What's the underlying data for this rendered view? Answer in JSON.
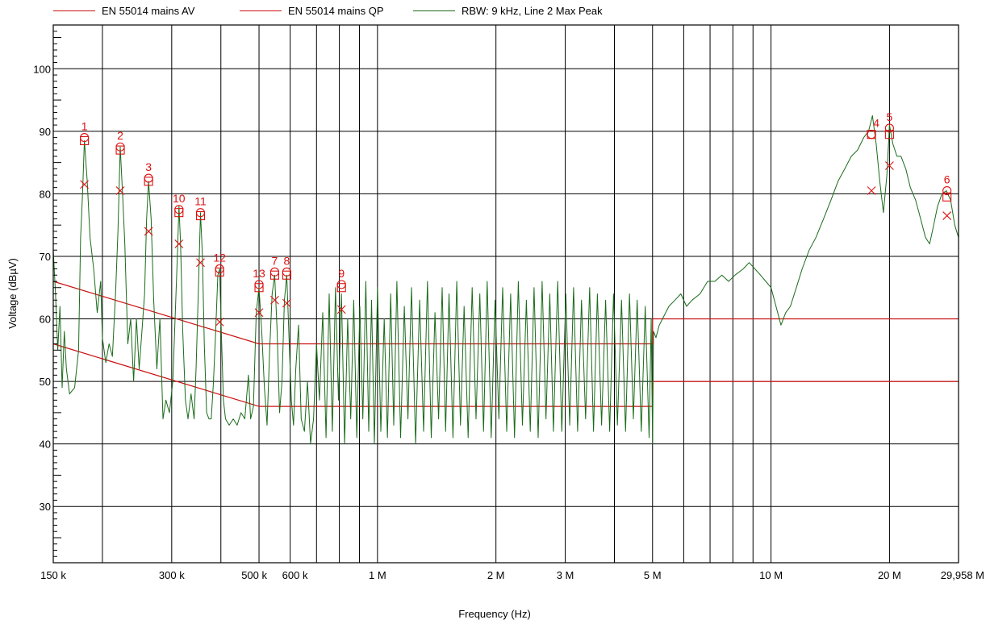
{
  "chart_data": {
    "type": "line",
    "xlabel": "Frequency (Hz)",
    "ylabel": "Voltage (dBµV)",
    "x_scale": "log",
    "xlim": [
      150000,
      29958000
    ],
    "ylim": [
      21,
      107
    ],
    "grid": true,
    "legend_position": "top",
    "x_ticks": [
      {
        "value": 150000,
        "label": "150 k"
      },
      {
        "value": 300000,
        "label": "300 k"
      },
      {
        "value": 500000,
        "label": "500 k"
      },
      {
        "value": 600000,
        "label": "600 k"
      },
      {
        "value": 1000000,
        "label": "1 M"
      },
      {
        "value": 2000000,
        "label": "2 M"
      },
      {
        "value": 3000000,
        "label": "3 M"
      },
      {
        "value": 5000000,
        "label": "5 M"
      },
      {
        "value": 10000000,
        "label": "10 M"
      },
      {
        "value": 20000000,
        "label": "20 M"
      },
      {
        "value": 29958000,
        "label": "29,958 M"
      }
    ],
    "x_gridlines": [
      150000,
      200000,
      300000,
      400000,
      500000,
      600000,
      700000,
      800000,
      900000,
      1000000,
      2000000,
      3000000,
      4000000,
      5000000,
      6000000,
      7000000,
      8000000,
      9000000,
      10000000,
      20000000
    ],
    "y_ticks": [
      30,
      40,
      50,
      60,
      70,
      80,
      90,
      100
    ],
    "series": [
      {
        "name": "EN 55014 mains AV",
        "color": "#cc1111",
        "style": "limit",
        "points": [
          [
            150000,
            56
          ],
          [
            500000,
            46
          ],
          [
            5000000,
            46
          ],
          [
            5000000,
            50
          ],
          [
            29958000,
            50
          ]
        ]
      },
      {
        "name": "EN 55014 mains QP",
        "color": "#cc1111",
        "style": "limit",
        "points": [
          [
            150000,
            66
          ],
          [
            500000,
            56
          ],
          [
            5000000,
            56
          ],
          [
            5000000,
            60
          ],
          [
            29958000,
            60
          ]
        ]
      },
      {
        "name": "RBW: 9 kHz, Line 2 Max Peak",
        "color": "#1a6b1a",
        "style": "trace",
        "points": [
          [
            150000,
            71
          ],
          [
            152000,
            64
          ],
          [
            154000,
            55
          ],
          [
            156000,
            62
          ],
          [
            158000,
            49
          ],
          [
            160000,
            58
          ],
          [
            162000,
            52
          ],
          [
            165000,
            48
          ],
          [
            170000,
            49
          ],
          [
            174000,
            55
          ],
          [
            176000,
            73
          ],
          [
            178000,
            80
          ],
          [
            180000,
            88.5
          ],
          [
            183000,
            82
          ],
          [
            186000,
            73
          ],
          [
            190000,
            68
          ],
          [
            194000,
            61
          ],
          [
            198000,
            66
          ],
          [
            200000,
            57
          ],
          [
            204000,
            53
          ],
          [
            208000,
            56
          ],
          [
            212000,
            54
          ],
          [
            216000,
            64
          ],
          [
            219000,
            74
          ],
          [
            222000,
            87.5
          ],
          [
            225000,
            80
          ],
          [
            228000,
            72
          ],
          [
            232000,
            56
          ],
          [
            236000,
            60
          ],
          [
            240000,
            50
          ],
          [
            244000,
            60
          ],
          [
            248000,
            52
          ],
          [
            252000,
            58
          ],
          [
            256000,
            64
          ],
          [
            259000,
            76
          ],
          [
            262000,
            82
          ],
          [
            266000,
            76
          ],
          [
            270000,
            63
          ],
          [
            275000,
            52
          ],
          [
            280000,
            60
          ],
          [
            285000,
            44
          ],
          [
            290000,
            47
          ],
          [
            296000,
            45
          ],
          [
            302000,
            50
          ],
          [
            306000,
            60
          ],
          [
            310000,
            70
          ],
          [
            313000,
            78
          ],
          [
            316000,
            72
          ],
          [
            320000,
            58
          ],
          [
            325000,
            47
          ],
          [
            330000,
            44
          ],
          [
            336000,
            48
          ],
          [
            342000,
            44
          ],
          [
            346000,
            52
          ],
          [
            350000,
            63
          ],
          [
            355000,
            77
          ],
          [
            359000,
            70
          ],
          [
            363000,
            56
          ],
          [
            368000,
            45
          ],
          [
            373000,
            44
          ],
          [
            378000,
            44
          ],
          [
            383000,
            50
          ],
          [
            388000,
            58
          ],
          [
            393000,
            67
          ],
          [
            397000,
            68
          ],
          [
            401000,
            58
          ],
          [
            406000,
            47
          ],
          [
            411000,
            44
          ],
          [
            420000,
            43
          ],
          [
            430000,
            44
          ],
          [
            440000,
            43
          ],
          [
            450000,
            45
          ],
          [
            460000,
            44
          ],
          [
            470000,
            51
          ],
          [
            476000,
            44
          ],
          [
            484000,
            46
          ],
          [
            492000,
            61
          ],
          [
            500000,
            65
          ],
          [
            508000,
            58
          ],
          [
            516000,
            49
          ],
          [
            524000,
            43
          ],
          [
            532000,
            55
          ],
          [
            540000,
            64
          ],
          [
            548000,
            67
          ],
          [
            556000,
            58
          ],
          [
            564000,
            45
          ],
          [
            572000,
            50
          ],
          [
            580000,
            63
          ],
          [
            588000,
            67
          ],
          [
            596000,
            57
          ],
          [
            604000,
            47
          ],
          [
            612000,
            43
          ],
          [
            620000,
            52
          ],
          [
            630000,
            59
          ],
          [
            640000,
            44
          ],
          [
            652000,
            42
          ],
          [
            664000,
            50
          ],
          [
            676000,
            40
          ],
          [
            688000,
            44
          ],
          [
            700000,
            56
          ],
          [
            712000,
            47
          ],
          [
            726000,
            61
          ],
          [
            740000,
            41
          ],
          [
            754000,
            64
          ],
          [
            768000,
            42
          ],
          [
            782000,
            65
          ],
          [
            796000,
            47
          ],
          [
            810000,
            64
          ],
          [
            825000,
            40
          ],
          [
            840000,
            60
          ],
          [
            855000,
            44
          ],
          [
            870000,
            63
          ],
          [
            886000,
            41
          ],
          [
            902000,
            62
          ],
          [
            918000,
            44
          ],
          [
            934000,
            66
          ],
          [
            950000,
            42
          ],
          [
            966000,
            63
          ],
          [
            982000,
            40
          ],
          [
            1000000,
            65
          ],
          [
            1020000,
            42
          ],
          [
            1040000,
            60
          ],
          [
            1060000,
            41
          ],
          [
            1080000,
            64
          ],
          [
            1100000,
            43
          ],
          [
            1120000,
            66
          ],
          [
            1145000,
            41
          ],
          [
            1170000,
            62
          ],
          [
            1195000,
            44
          ],
          [
            1220000,
            65
          ],
          [
            1250000,
            40
          ],
          [
            1280000,
            63
          ],
          [
            1310000,
            42
          ],
          [
            1340000,
            66
          ],
          [
            1370000,
            41
          ],
          [
            1400000,
            61
          ],
          [
            1430000,
            44
          ],
          [
            1460000,
            65
          ],
          [
            1490000,
            42
          ],
          [
            1520000,
            64
          ],
          [
            1555000,
            41
          ],
          [
            1590000,
            66
          ],
          [
            1625000,
            43
          ],
          [
            1660000,
            62
          ],
          [
            1700000,
            41
          ],
          [
            1740000,
            65
          ],
          [
            1780000,
            44
          ],
          [
            1820000,
            64
          ],
          [
            1860000,
            42
          ],
          [
            1900000,
            66
          ],
          [
            1945000,
            41
          ],
          [
            1990000,
            63
          ],
          [
            2035000,
            44
          ],
          [
            2080000,
            65
          ],
          [
            2130000,
            42
          ],
          [
            2180000,
            64
          ],
          [
            2230000,
            41
          ],
          [
            2280000,
            66
          ],
          [
            2335000,
            43
          ],
          [
            2390000,
            63
          ],
          [
            2445000,
            42
          ],
          [
            2500000,
            65
          ],
          [
            2560000,
            41
          ],
          [
            2620000,
            66
          ],
          [
            2680000,
            44
          ],
          [
            2740000,
            64
          ],
          [
            2800000,
            42
          ],
          [
            2870000,
            66
          ],
          [
            2940000,
            42
          ],
          [
            3010000,
            64
          ],
          [
            3080000,
            43
          ],
          [
            3150000,
            65
          ],
          [
            3225000,
            42
          ],
          [
            3300000,
            63
          ],
          [
            3380000,
            44
          ],
          [
            3460000,
            65
          ],
          [
            3540000,
            42
          ],
          [
            3620000,
            64
          ],
          [
            3710000,
            43
          ],
          [
            3800000,
            63
          ],
          [
            3890000,
            42
          ],
          [
            3980000,
            64
          ],
          [
            4070000,
            43
          ],
          [
            4170000,
            63
          ],
          [
            4270000,
            42
          ],
          [
            4370000,
            64
          ],
          [
            4470000,
            44
          ],
          [
            4570000,
            63
          ],
          [
            4680000,
            42
          ],
          [
            4790000,
            62
          ],
          [
            4900000,
            41
          ],
          [
            4960000,
            60
          ],
          [
            5000000,
            40
          ],
          [
            5030000,
            58
          ],
          [
            5100000,
            57
          ],
          [
            5200000,
            59
          ],
          [
            5300000,
            60
          ],
          [
            5500000,
            62
          ],
          [
            5700000,
            63
          ],
          [
            5900000,
            64
          ],
          [
            6100000,
            62
          ],
          [
            6300000,
            63
          ],
          [
            6600000,
            64
          ],
          [
            6900000,
            66
          ],
          [
            7200000,
            66
          ],
          [
            7500000,
            67
          ],
          [
            7800000,
            66
          ],
          [
            8100000,
            67
          ],
          [
            8500000,
            68
          ],
          [
            8800000,
            69
          ],
          [
            9100000,
            68
          ],
          [
            9400000,
            67
          ],
          [
            9700000,
            66
          ],
          [
            10000000,
            65
          ],
          [
            10300000,
            62
          ],
          [
            10600000,
            59
          ],
          [
            10900000,
            61
          ],
          [
            11200000,
            62
          ],
          [
            11600000,
            65
          ],
          [
            12000000,
            68
          ],
          [
            12500000,
            71
          ],
          [
            13000000,
            73
          ],
          [
            13600000,
            76
          ],
          [
            14200000,
            79
          ],
          [
            14800000,
            82
          ],
          [
            15400000,
            84
          ],
          [
            16000000,
            86
          ],
          [
            16600000,
            87
          ],
          [
            17200000,
            89
          ],
          [
            17700000,
            90
          ],
          [
            18100000,
            92.5
          ],
          [
            18500000,
            88
          ],
          [
            18900000,
            82
          ],
          [
            19300000,
            77
          ],
          [
            19700000,
            83
          ],
          [
            20000000,
            91
          ],
          [
            20400000,
            88
          ],
          [
            20900000,
            86
          ],
          [
            21400000,
            86
          ],
          [
            22000000,
            84
          ],
          [
            22600000,
            81
          ],
          [
            23300000,
            79
          ],
          [
            24000000,
            76
          ],
          [
            24700000,
            73
          ],
          [
            25300000,
            72
          ],
          [
            25900000,
            75
          ],
          [
            26500000,
            78
          ],
          [
            27200000,
            80
          ],
          [
            27900000,
            80.5
          ],
          [
            28600000,
            79
          ],
          [
            29300000,
            75
          ],
          [
            29958000,
            73
          ]
        ]
      }
    ],
    "markers": [
      {
        "label": "1",
        "freq": 180000,
        "peak": 89,
        "qp": 88.5,
        "av": 81.5
      },
      {
        "label": "2",
        "freq": 222000,
        "peak": 87.5,
        "qp": 87,
        "av": 80.5
      },
      {
        "label": "3",
        "freq": 262000,
        "peak": 82.5,
        "qp": 82,
        "av": 74
      },
      {
        "label": "10",
        "freq": 313000,
        "peak": 77.5,
        "qp": 77,
        "av": 72
      },
      {
        "label": "11",
        "freq": 355000,
        "peak": 77,
        "qp": 76.5,
        "av": 69
      },
      {
        "label": "12",
        "freq": 397000,
        "peak": 68,
        "qp": 67.5,
        "av": 59.5
      },
      {
        "label": "13",
        "freq": 500000,
        "peak": 65.5,
        "qp": 65,
        "av": 61
      },
      {
        "label": "7",
        "freq": 548000,
        "peak": 67.5,
        "qp": 67,
        "av": 63
      },
      {
        "label": "8",
        "freq": 588000,
        "peak": 67.5,
        "qp": 67,
        "av": 62.5
      },
      {
        "label": "9",
        "freq": 810000,
        "peak": 65.5,
        "qp": 65,
        "av": 61.5
      },
      {
        "label": "4",
        "freq": 18000000,
        "peak": 89.5,
        "qp": 89.5,
        "av": 80.5
      },
      {
        "label": "5",
        "freq": 20000000,
        "peak": 90.5,
        "qp": 89.5,
        "av": 84.5
      },
      {
        "label": "6",
        "freq": 28000000,
        "peak": 80.5,
        "qp": 79.5,
        "av": 76.5
      }
    ]
  },
  "legend": {
    "items": [
      {
        "label": "EN 55014 mains AV",
        "color": "#cc1111"
      },
      {
        "label": "EN 55014 mains QP",
        "color": "#cc1111"
      },
      {
        "label": "RBW: 9 kHz, Line 2 Max Peak",
        "color": "#1a6b1a"
      }
    ]
  }
}
